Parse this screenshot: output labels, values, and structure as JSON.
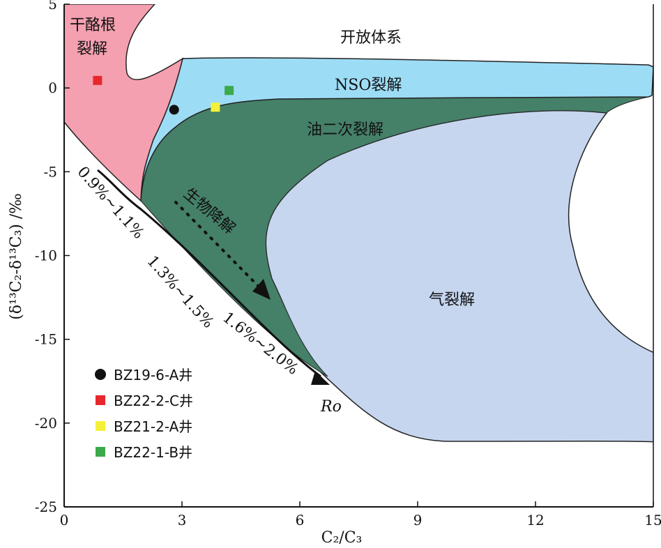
{
  "chart_data": {
    "type": "scatter",
    "title": "",
    "xlabel": "C₂/C₃",
    "ylabel": "(δ¹³C₂-δ¹³C₃) /‰",
    "xlim": [
      0,
      15
    ],
    "ylim": [
      -25,
      5
    ],
    "x_ticks": [
      0,
      3,
      6,
      9,
      12,
      15
    ],
    "y_ticks": [
      5,
      0,
      -5,
      -10,
      -15,
      -20,
      -25
    ],
    "grid": false,
    "legend_position": "bottom-left",
    "regions": [
      {
        "name": "干酪根裂解",
        "color": "#f4a0b0"
      },
      {
        "name": "开放体系",
        "color": "#ffffff"
      },
      {
        "name": "NSO裂解",
        "color": "#9ddcf5"
      },
      {
        "name": "油二次裂解",
        "color": "#458068"
      },
      {
        "name": "气裂解",
        "color": "#c6d6ef"
      }
    ],
    "region_label_lines": {
      "kerogen": [
        "干酪根",
        "裂解"
      ],
      "open": "开放体系",
      "nso": "NSO裂解",
      "oil": "油二次裂解",
      "gas": "气裂解",
      "bio": "生物降解"
    },
    "ro_segments": [
      "0.9%~1.1%",
      "1.3%~1.5%",
      "1.6%~2.0%"
    ],
    "ro_label": "Ro",
    "series": [
      {
        "name": "BZ19-6-A井",
        "marker": "circle",
        "color": "#111111",
        "points": [
          [
            2.8,
            -1.3
          ]
        ]
      },
      {
        "name": "BZ22-2-C井",
        "marker": "square",
        "color": "#e8272d",
        "points": [
          [
            0.85,
            0.45
          ]
        ]
      },
      {
        "name": "BZ21-2-A井",
        "marker": "square",
        "color": "#f5f03a",
        "points": [
          [
            3.85,
            -1.15
          ]
        ]
      },
      {
        "name": "BZ22-1-B井",
        "marker": "square",
        "color": "#3aaa4c",
        "points": [
          [
            4.2,
            -0.15
          ]
        ]
      }
    ]
  }
}
